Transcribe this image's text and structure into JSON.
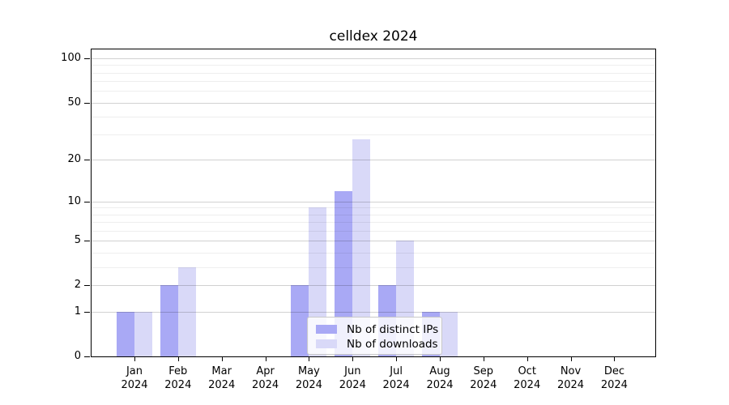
{
  "title": "celldex 2024",
  "chart_data": {
    "type": "bar",
    "title": "celldex 2024",
    "categories": [
      "Jan 2024",
      "Feb 2024",
      "Mar 2024",
      "Apr 2024",
      "May 2024",
      "Jun 2024",
      "Jul 2024",
      "Aug 2024",
      "Sep 2024",
      "Oct 2024",
      "Nov 2024",
      "Dec 2024"
    ],
    "months": [
      "Jan",
      "Feb",
      "Mar",
      "Apr",
      "May",
      "Jun",
      "Jul",
      "Aug",
      "Sep",
      "Oct",
      "Nov",
      "Dec"
    ],
    "year": "2024",
    "series": [
      {
        "name": "Nb of distinct IPs",
        "color": "#a9a9f5",
        "values": [
          1,
          2,
          0,
          0,
          2,
          12,
          2,
          1,
          0,
          0,
          0,
          0
        ]
      },
      {
        "name": "Nb of downloads",
        "color": "#d9d9f8",
        "values": [
          1,
          3,
          0,
          0,
          9,
          28,
          5,
          1,
          0,
          0,
          0,
          0
        ]
      }
    ],
    "xlabel": "",
    "ylabel": "",
    "y_scale": "log1p",
    "ylim": [
      0,
      115
    ],
    "y_major_ticks": [
      0,
      1,
      2,
      5,
      10,
      20,
      50,
      100
    ],
    "y_minor_gridlines": [
      3,
      4,
      6,
      7,
      8,
      9,
      30,
      40,
      60,
      70,
      80,
      90
    ],
    "grid": true,
    "legend_position": "lower center"
  },
  "colors": {
    "background": "#ffffff",
    "bar_distinct_ips": "#a9a9f5",
    "bar_downloads": "#d9d9f8",
    "axis": "#000000",
    "grid_major": "#d1d1d1",
    "grid_minor": "#ececec",
    "legend_border": "#c9c9c9"
  }
}
